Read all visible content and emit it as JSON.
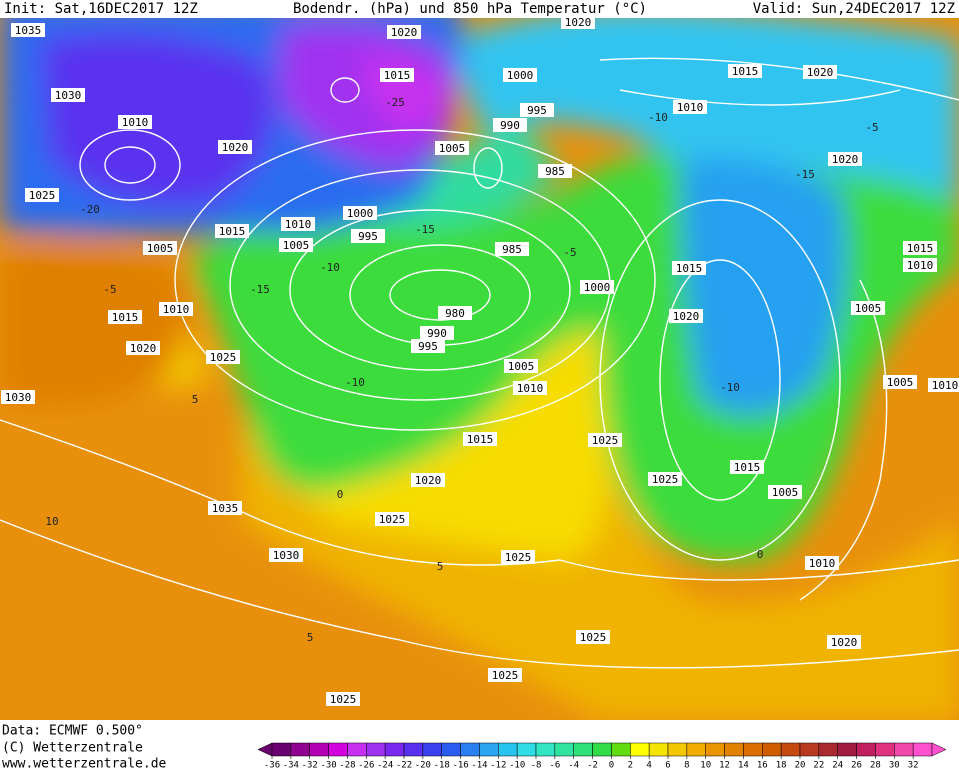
{
  "header": {
    "init": "Init: Sat,16DEC2017 12Z",
    "title": "Bodendr. (hPa) und 850 hPa Temperatur (°C)",
    "valid": "Valid: Sun,24DEC2017 12Z"
  },
  "isobar_labels": [
    1035,
    1030,
    1010,
    1020,
    1025,
    1005,
    1015,
    1010,
    1005,
    1000,
    995,
    1020,
    1015,
    1005,
    1000,
    995,
    990,
    985,
    985,
    980,
    990,
    995,
    1000,
    1005,
    1010,
    1015,
    1020,
    1025,
    1025,
    1015,
    1020,
    1015,
    1005,
    1010,
    1015,
    1020,
    1020,
    1015,
    1010,
    1005,
    1005,
    1010,
    1015,
    1010,
    1020,
    1025,
    1030,
    1035,
    1030,
    1025,
    1025,
    1025,
    1025,
    1025,
    1020,
    1020,
    1010
  ],
  "temperature_labels": [
    -25,
    -20,
    -15,
    -10,
    -10,
    -15,
    -10,
    -5,
    -5,
    0,
    5,
    10,
    5,
    0,
    5,
    -10,
    -15,
    -5
  ],
  "footer": {
    "data": "Data: ECMWF  0.500°",
    "copyright": "(C) Wetterzentrale",
    "url": "www.wetterzentrale.de"
  },
  "scale": {
    "labels": [
      -36,
      -34,
      -32,
      -30,
      -28,
      -26,
      -24,
      -22,
      -20,
      -18,
      -16,
      -14,
      -12,
      -10,
      -8,
      -6,
      -4,
      -2,
      0,
      2,
      4,
      6,
      8,
      10,
      12,
      14,
      16,
      18,
      20,
      22,
      24,
      26,
      28,
      30,
      32
    ],
    "colors": [
      "#6a0070",
      "#900090",
      "#b400b4",
      "#d200dc",
      "#c830f0",
      "#a030f0",
      "#7a28f0",
      "#5a30f0",
      "#3a40f0",
      "#2a5cf0",
      "#2a80f0",
      "#28a4f0",
      "#28c4f0",
      "#30dce6",
      "#30e4c4",
      "#30e4a0",
      "#30e078",
      "#30dc48",
      "#60dc10",
      "#ffff00",
      "#f4e400",
      "#f4c800",
      "#f0ac00",
      "#ea9400",
      "#e28000",
      "#da6e00",
      "#d05c00",
      "#c44a10",
      "#b83a20",
      "#a82a30",
      "#a01c40",
      "#c02060",
      "#e03080",
      "#f048a8",
      "#ff50d0"
    ]
  }
}
